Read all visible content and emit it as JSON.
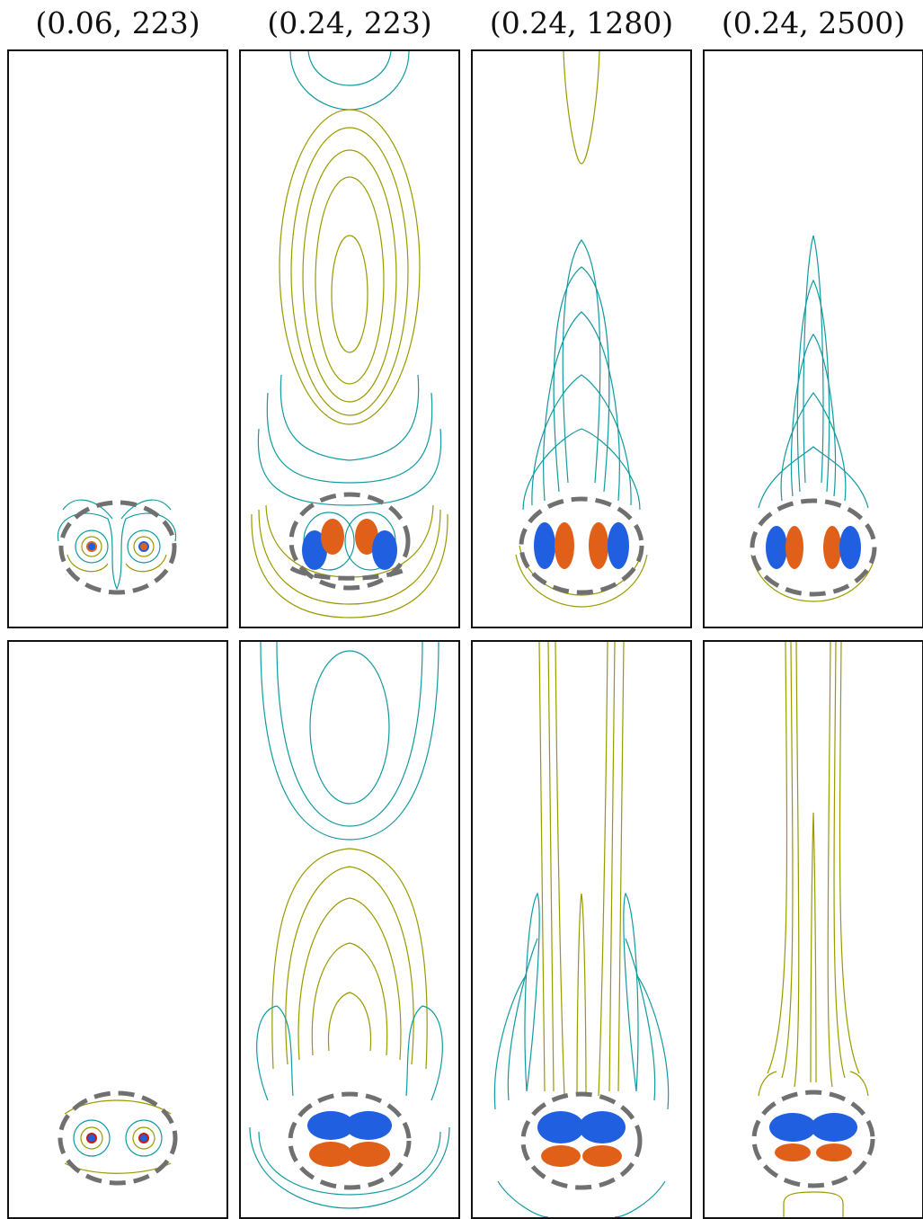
{
  "columns": [
    {
      "label": "(0.06, 223)"
    },
    {
      "label": "(0.24, 223)"
    },
    {
      "label": "(0.24, 1280)"
    },
    {
      "label": "(0.24, 2500)"
    }
  ],
  "colors": {
    "positive_far": "#9a9a00",
    "negative_far": "#129aa0",
    "core_blue": "#1f5fe0",
    "core_orange": "#e0601a",
    "core_red": "#c21f10",
    "boundary_dashed": "#707070",
    "frame": "#111111"
  },
  "rows": [
    {
      "row": "top"
    },
    {
      "row": "bottom"
    }
  ]
}
